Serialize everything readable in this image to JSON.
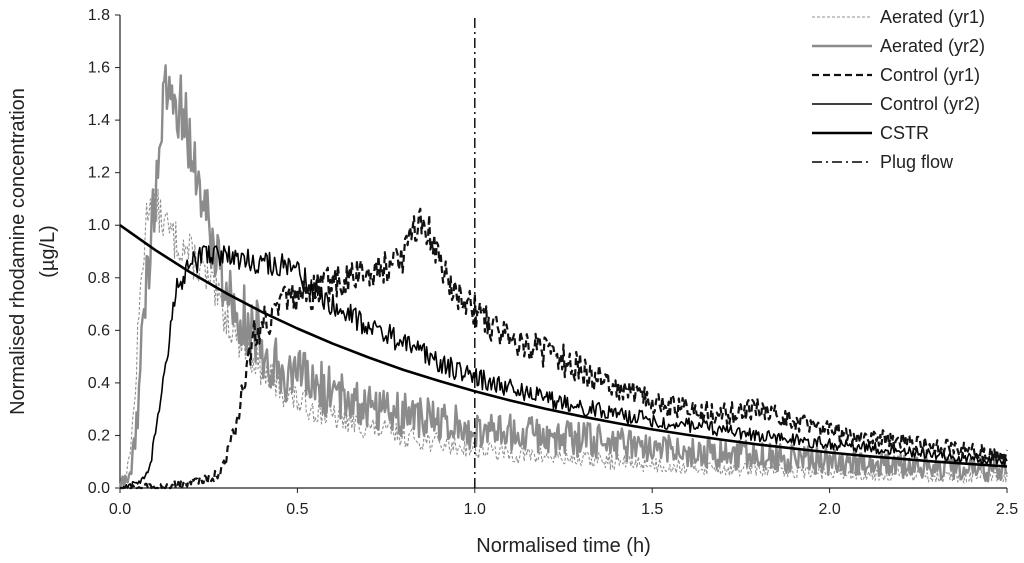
{
  "chart_data": {
    "type": "line",
    "title": "",
    "xlabel": "Normalised time (h)",
    "ylabel": [
      "Normalised rhodamine concentration",
      "(µg/L)"
    ],
    "xlim": [
      0,
      2.5
    ],
    "ylim": [
      0,
      1.8
    ],
    "x_ticks": [
      "0.0",
      "0.5",
      "1.0",
      "1.5",
      "2.0",
      "2.5"
    ],
    "y_ticks": [
      "0.0",
      "0.2",
      "0.4",
      "0.6",
      "0.8",
      "1.0",
      "1.2",
      "1.4",
      "1.6",
      "1.8"
    ],
    "grid": false,
    "legend_position": "top-right",
    "series": [
      {
        "name": "Aerated (yr1)",
        "color": "#909090",
        "style": "dotted",
        "noise": 0.06,
        "x": [
          0.0,
          0.02,
          0.04,
          0.06,
          0.08,
          0.1,
          0.12,
          0.15,
          0.18,
          0.22,
          0.26,
          0.3,
          0.35,
          0.4,
          0.45,
          0.5,
          0.6,
          0.7,
          0.8,
          0.9,
          1.0,
          1.1,
          1.2,
          1.4,
          1.6,
          1.8,
          2.0,
          2.2,
          2.5
        ],
        "y": [
          0.0,
          0.05,
          0.3,
          0.8,
          1.1,
          1.08,
          1.02,
          0.95,
          0.92,
          0.85,
          0.75,
          0.65,
          0.55,
          0.45,
          0.38,
          0.33,
          0.27,
          0.23,
          0.2,
          0.17,
          0.15,
          0.13,
          0.12,
          0.1,
          0.08,
          0.07,
          0.06,
          0.05,
          0.04
        ]
      },
      {
        "name": "Aerated (yr2)",
        "color": "#8c8c8c",
        "style": "solid-thick",
        "noise": 0.1,
        "x": [
          0.0,
          0.03,
          0.05,
          0.07,
          0.09,
          0.11,
          0.13,
          0.15,
          0.17,
          0.2,
          0.23,
          0.27,
          0.3,
          0.35,
          0.4,
          0.45,
          0.5,
          0.6,
          0.7,
          0.8,
          0.9,
          1.0,
          1.2,
          1.4,
          1.6,
          1.8,
          2.0,
          2.2,
          2.5
        ],
        "y": [
          0.0,
          0.05,
          0.3,
          0.7,
          1.0,
          1.3,
          1.5,
          1.5,
          1.45,
          1.3,
          1.1,
          0.9,
          0.75,
          0.65,
          0.55,
          0.45,
          0.42,
          0.36,
          0.32,
          0.28,
          0.25,
          0.22,
          0.2,
          0.17,
          0.14,
          0.12,
          0.1,
          0.09,
          0.07
        ]
      },
      {
        "name": "Control (yr1)",
        "color": "#111111",
        "style": "dashed",
        "noise": 0.05,
        "x": [
          0.0,
          0.1,
          0.2,
          0.28,
          0.32,
          0.35,
          0.38,
          0.42,
          0.48,
          0.55,
          0.6,
          0.65,
          0.7,
          0.75,
          0.8,
          0.83,
          0.85,
          0.87,
          0.9,
          0.95,
          1.0,
          1.05,
          1.1,
          1.2,
          1.3,
          1.4,
          1.5,
          1.6,
          1.7,
          1.8,
          1.9,
          2.0,
          2.2,
          2.4,
          2.5
        ],
        "y": [
          0.0,
          0.0,
          0.02,
          0.05,
          0.2,
          0.4,
          0.6,
          0.65,
          0.72,
          0.75,
          0.78,
          0.8,
          0.82,
          0.85,
          0.88,
          0.98,
          1.02,
          0.98,
          0.85,
          0.75,
          0.68,
          0.62,
          0.58,
          0.52,
          0.45,
          0.38,
          0.33,
          0.3,
          0.28,
          0.3,
          0.26,
          0.22,
          0.18,
          0.14,
          0.12
        ]
      },
      {
        "name": "Control (yr2)",
        "color": "#000000",
        "style": "solid",
        "noise": 0.035,
        "x": [
          0.0,
          0.05,
          0.08,
          0.1,
          0.13,
          0.16,
          0.2,
          0.25,
          0.3,
          0.35,
          0.4,
          0.45,
          0.5,
          0.55,
          0.6,
          0.7,
          0.8,
          0.9,
          1.0,
          1.1,
          1.2,
          1.3,
          1.4,
          1.5,
          1.6,
          1.8,
          2.0,
          2.2,
          2.5
        ],
        "y": [
          0.0,
          0.02,
          0.05,
          0.2,
          0.5,
          0.75,
          0.85,
          0.9,
          0.88,
          0.87,
          0.86,
          0.85,
          0.82,
          0.75,
          0.7,
          0.62,
          0.55,
          0.48,
          0.42,
          0.38,
          0.34,
          0.31,
          0.28,
          0.26,
          0.24,
          0.2,
          0.17,
          0.14,
          0.1
        ]
      },
      {
        "name": "CSTR",
        "color": "#000000",
        "style": "bold",
        "noise": 0,
        "x": [
          0.0,
          0.1,
          0.2,
          0.3,
          0.4,
          0.5,
          0.6,
          0.7,
          0.8,
          0.9,
          1.0,
          1.1,
          1.2,
          1.3,
          1.4,
          1.5,
          1.6,
          1.7,
          1.8,
          1.9,
          2.0,
          2.1,
          2.2,
          2.3,
          2.4,
          2.5
        ],
        "y": [
          1.0,
          0.905,
          0.819,
          0.741,
          0.67,
          0.607,
          0.549,
          0.497,
          0.449,
          0.407,
          0.368,
          0.333,
          0.301,
          0.273,
          0.247,
          0.223,
          0.202,
          0.183,
          0.165,
          0.15,
          0.135,
          0.122,
          0.111,
          0.1,
          0.091,
          0.082
        ]
      },
      {
        "name": "Plug flow",
        "color": "#000000",
        "style": "dashdot",
        "noise": 0,
        "x": [
          1.0,
          1.0
        ],
        "y": [
          0.0,
          1.8
        ]
      }
    ]
  }
}
